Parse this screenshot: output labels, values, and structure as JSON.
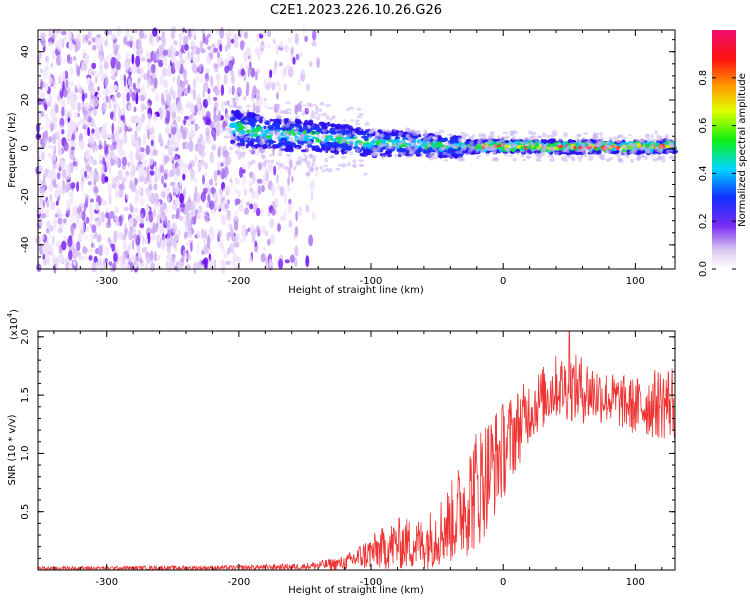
{
  "title": "C2E1.2023.226.10.26.G26",
  "chart_data": [
    {
      "type": "heatmap",
      "xlabel": "Height of straight line (km)",
      "ylabel": "Frequency (Hz)",
      "xlim": [
        -352,
        130
      ],
      "ylim": [
        -50,
        49
      ],
      "xticks": [
        -300,
        -200,
        -100,
        0,
        100
      ],
      "xtick_labels": [
        "-300",
        "-200",
        "-100",
        "0",
        "100"
      ],
      "yticks": [
        -40,
        -20,
        0,
        20,
        40
      ],
      "ytick_labels": [
        "-40",
        "-20",
        "0",
        "20",
        "40"
      ],
      "colorbar": {
        "label": "Normalized spectral amplitude",
        "range": [
          0,
          1
        ],
        "ticks": [
          0.0,
          0.2,
          0.4,
          0.6,
          0.8
        ],
        "tick_labels": [
          "0.0",
          "0.2",
          "0.4",
          "0.6",
          "0.8"
        ],
        "colormap": "white-purple-blue-cyan-green-yellow-red-magenta"
      },
      "ridge": [
        {
          "x": -200,
          "y": 8
        },
        {
          "x": -175,
          "y": 6
        },
        {
          "x": -150,
          "y": 5
        },
        {
          "x": -125,
          "y": 4
        },
        {
          "x": -100,
          "y": 2
        },
        {
          "x": -75,
          "y": 2
        },
        {
          "x": -50,
          "y": 1
        },
        {
          "x": -25,
          "y": 0.5
        },
        {
          "x": 0,
          "y": 1
        },
        {
          "x": 50,
          "y": 0.5
        },
        {
          "x": 100,
          "y": 0.5
        },
        {
          "x": 130,
          "y": 1
        }
      ]
    },
    {
      "type": "line",
      "xlabel": "Height of straight line (km)",
      "ylabel": "SNR (10 * v/v)",
      "multiplier_label": "(x10",
      "multiplier_exp": "4",
      "multiplier_close": ")",
      "xlim": [
        -352,
        130
      ],
      "ylim": [
        0,
        2.05
      ],
      "xticks": [
        -300,
        -200,
        -100,
        0,
        100
      ],
      "xtick_labels": [
        "-300",
        "-200",
        "-100",
        "0",
        "100"
      ],
      "yticks": [
        0.5,
        1.0,
        1.5,
        2.0
      ],
      "ytick_labels": [
        "0.5",
        "1.0",
        "1.5",
        "2.0"
      ],
      "color": "#ee3333",
      "envelope": [
        {
          "x": -350,
          "lo": 0.0,
          "hi": 0.03
        },
        {
          "x": -200,
          "lo": 0.0,
          "hi": 0.04
        },
        {
          "x": -150,
          "lo": 0.0,
          "hi": 0.06
        },
        {
          "x": -120,
          "lo": 0.0,
          "hi": 0.12
        },
        {
          "x": -100,
          "lo": 0.0,
          "hi": 0.3
        },
        {
          "x": -80,
          "lo": 0.0,
          "hi": 0.45
        },
        {
          "x": -60,
          "lo": 0.0,
          "hi": 0.45
        },
        {
          "x": -40,
          "lo": 0.05,
          "hi": 0.75
        },
        {
          "x": -20,
          "lo": 0.15,
          "hi": 1.25
        },
        {
          "x": 0,
          "lo": 0.6,
          "hi": 1.45
        },
        {
          "x": 20,
          "lo": 1.1,
          "hi": 1.65
        },
        {
          "x": 40,
          "lo": 1.3,
          "hi": 1.85
        },
        {
          "x": 60,
          "lo": 1.25,
          "hi": 1.85
        },
        {
          "x": 80,
          "lo": 1.25,
          "hi": 1.7
        },
        {
          "x": 100,
          "lo": 1.15,
          "hi": 1.65
        },
        {
          "x": 130,
          "lo": 1.1,
          "hi": 1.8
        }
      ],
      "peak": {
        "x": 50,
        "y": 2.05
      }
    }
  ]
}
